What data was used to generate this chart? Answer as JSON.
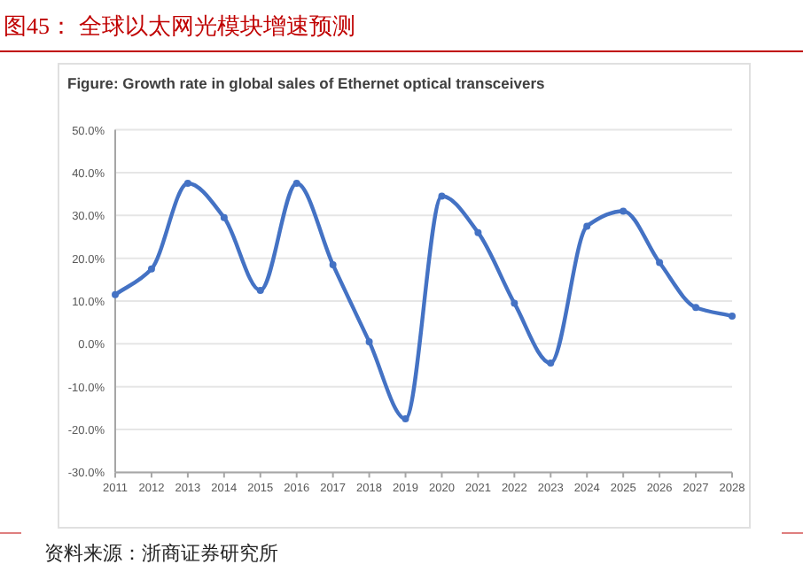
{
  "chart_data": {
    "type": "line",
    "title": "图45：  全球以太网光模块增速预测",
    "subtitle": "Figure: Growth rate in global sales of Ethernet optical transceivers",
    "annotations": [
      "资料来源：浙商证券研究所"
    ],
    "categories": [
      "2011",
      "2012",
      "2013",
      "2014",
      "2015",
      "2016",
      "2017",
      "2018",
      "2019",
      "2020",
      "2021",
      "2022",
      "2023",
      "2024",
      "2025",
      "2026",
      "2027",
      "2028"
    ],
    "series": [
      {
        "color": "#4472c4",
        "values": [
          11.5,
          17.5,
          37.5,
          29.5,
          12.5,
          37.5,
          18.5,
          0.5,
          -17.5,
          34.5,
          26,
          9.5,
          -4.5,
          27.5,
          31,
          19,
          8.5,
          6.5
        ]
      }
    ],
    "ylim": [
      -30,
      50
    ],
    "yticks": [
      {
        "value": -30,
        "label": "-30.0%"
      },
      {
        "value": -20,
        "label": "-20.0%"
      },
      {
        "value": -10,
        "label": "-10.0%"
      },
      {
        "value": 0,
        "label": "0.0%"
      },
      {
        "value": 10,
        "label": "10.0%"
      },
      {
        "value": 20,
        "label": "20.0%"
      },
      {
        "value": 30,
        "label": "30.0%"
      },
      {
        "value": 40,
        "label": "40.0%"
      },
      {
        "value": 50,
        "label": "50.0%"
      }
    ],
    "grid": "y",
    "marker": "circle",
    "line_style": "solid"
  }
}
